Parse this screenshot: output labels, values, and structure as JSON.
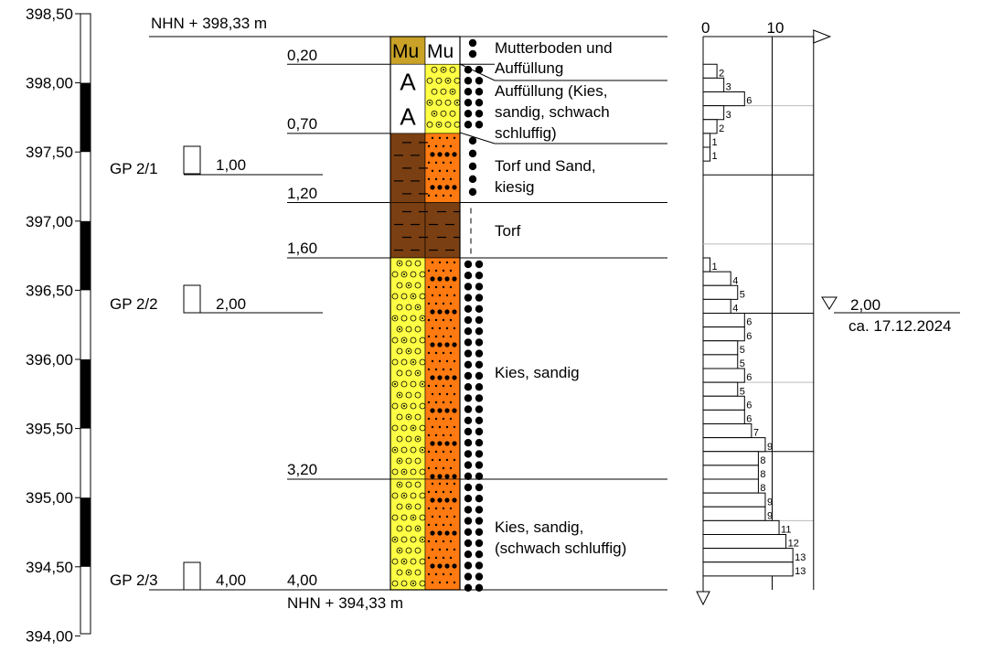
{
  "elevation_scale": {
    "ticks": [
      "398,50",
      "398,00",
      "397,50",
      "397,00",
      "396,50",
      "396,00",
      "395,50",
      "395,00",
      "394,50",
      "394,00"
    ]
  },
  "top_label": "NHN + 398,33 m",
  "bottom_label": "NHN + 394,33 m",
  "depth_labels": [
    "0,20",
    "0,70",
    "1,20",
    "1,60",
    "3,20",
    "4,00"
  ],
  "samples": [
    {
      "name": "GP 2/1",
      "depth": "1,00"
    },
    {
      "name": "GP 2/2",
      "depth": "2,00"
    },
    {
      "name": "GP 2/3",
      "depth": "4,00"
    }
  ],
  "column_codes": {
    "left": "Mu",
    "right": "Mu"
  },
  "layers": [
    {
      "top": 0.0,
      "bottom": 0.2,
      "description": [
        "Mutterboden und",
        "Auffüllung"
      ],
      "left_fill": "#c9a227",
      "right_fill": "#ffffff",
      "left_pattern": "Mu",
      "right_pattern": "Mu"
    },
    {
      "top": 0.2,
      "bottom": 0.7,
      "description": [
        "Auffüllung (Kies,",
        "sandig, schwach",
        "schluffig)"
      ],
      "left_fill": "#ffffff",
      "right_fill": "#ffff44",
      "left_pattern": "A",
      "right_pattern": "gravel"
    },
    {
      "top": 0.7,
      "bottom": 1.2,
      "description": [
        "Torf und Sand,",
        "kiesig"
      ],
      "left_fill": "#7a3f12",
      "right_fill": "#ff7a10",
      "left_pattern": "peat",
      "right_pattern": "sand"
    },
    {
      "top": 1.2,
      "bottom": 1.6,
      "description": [
        "Torf"
      ],
      "left_fill": "#7a3f12",
      "right_fill": "#7a3f12",
      "left_pattern": "peat",
      "right_pattern": "peat"
    },
    {
      "top": 1.6,
      "bottom": 3.2,
      "description": [
        "Kies, sandig"
      ],
      "left_fill": "#ffff44",
      "right_fill": "#ff7a10",
      "left_pattern": "gravel",
      "right_pattern": "sand"
    },
    {
      "top": 3.2,
      "bottom": 4.0,
      "description": [
        "Kies, sandig,",
        "(schwach schluffig)"
      ],
      "left_fill": "#ffff44",
      "right_fill": "#ff7a10",
      "left_pattern": "gravel",
      "right_pattern": "sand"
    }
  ],
  "penetration": {
    "axis_ticks": [
      "0",
      "10"
    ],
    "axis_max": 16,
    "interval_m": 0.1,
    "blows": [
      null,
      null,
      2,
      3,
      6,
      3,
      2,
      1,
      1,
      null,
      null,
      null,
      null,
      null,
      null,
      null,
      1,
      4,
      5,
      4,
      6,
      6,
      5,
      5,
      6,
      5,
      6,
      6,
      7,
      9,
      8,
      8,
      8,
      9,
      9,
      11,
      12,
      13,
      13
    ]
  },
  "groundwater": {
    "depth": "2,00",
    "date": "ca. 17.12.2024"
  },
  "colors": {
    "peat": "#7a3f12",
    "topsoil": "#c9a227",
    "gravel": "#ffff44",
    "sand": "#ff7a10"
  }
}
